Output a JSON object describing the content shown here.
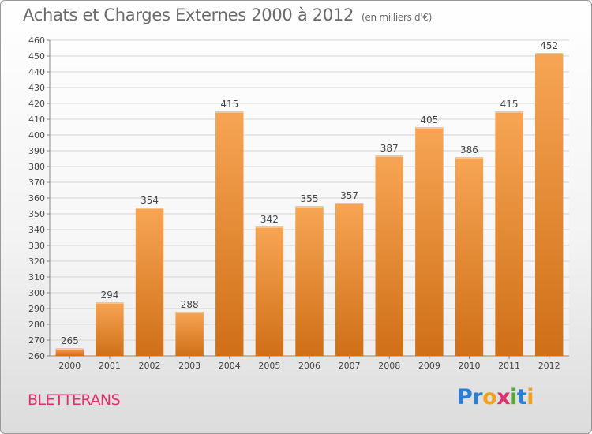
{
  "title": "Achats et Charges Externes 2000 à 2012",
  "title_unit": "(en milliers d'€)",
  "location": "BLETTERANS",
  "logo": {
    "letters": [
      {
        "ch": "P",
        "color": "#2a7fd4"
      },
      {
        "ch": "r",
        "color": "#2a7fd4"
      },
      {
        "ch": "o",
        "color": "#f2a01e"
      },
      {
        "ch": "x",
        "color": "#e0316e"
      },
      {
        "ch": "i",
        "color": "#5aa832"
      },
      {
        "ch": "t",
        "color": "#2a7fd4"
      },
      {
        "ch": "i",
        "color": "#f2a01e"
      }
    ]
  },
  "colors": {
    "bar_light": "#f7a554",
    "bar_dark": "#cf6f17",
    "title_text": "#6a6a6a",
    "location_text": "#e0316e",
    "grid": "#d4d4d4"
  },
  "chart_data": {
    "type": "bar",
    "title": "Achats et Charges Externes 2000 à 2012",
    "subtitle": "(en milliers d'€)",
    "categories": [
      "2000",
      "2001",
      "2002",
      "2003",
      "2004",
      "2005",
      "2006",
      "2007",
      "2008",
      "2009",
      "2010",
      "2011",
      "2012"
    ],
    "values": [
      265,
      294,
      354,
      288,
      415,
      342,
      355,
      357,
      387,
      405,
      386,
      415,
      452
    ],
    "ylim": [
      260,
      460
    ],
    "ytick_step": 10,
    "grid": true,
    "legend": "none",
    "data_labels": true
  }
}
